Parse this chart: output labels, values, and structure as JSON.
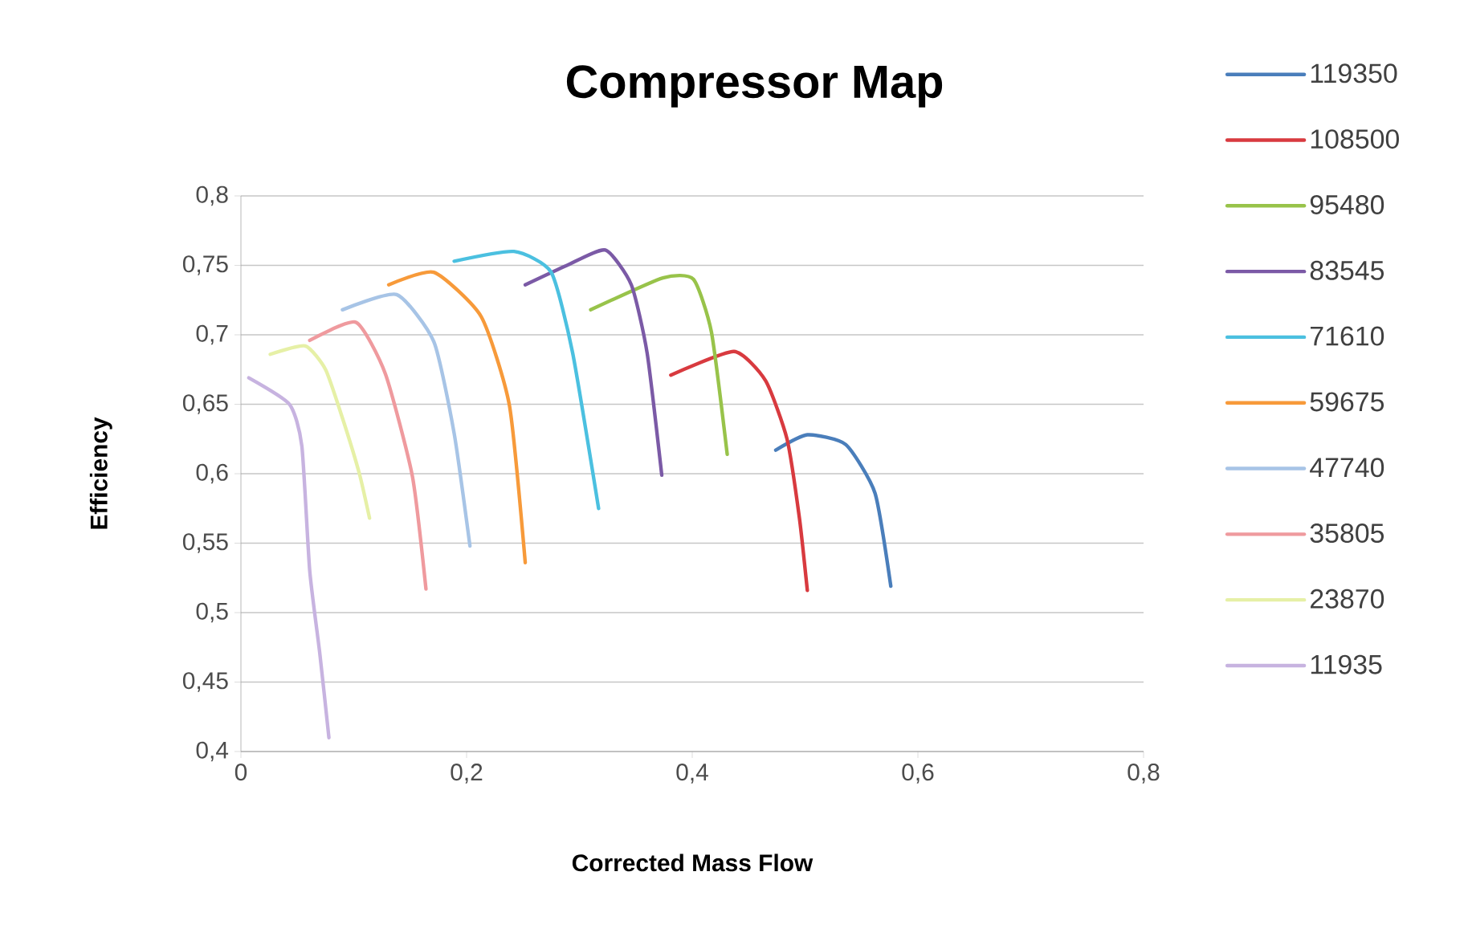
{
  "chart_data": {
    "type": "line",
    "title": "Compressor Map",
    "xlabel": "Corrected Mass Flow",
    "ylabel": "Efficiency",
    "xlim": [
      0,
      0.8
    ],
    "ylim": [
      0.4,
      0.8
    ],
    "xticks": [
      0,
      {
        "value": 0.2,
        "label": "0,2"
      },
      {
        "value": 0.4,
        "label": "0,4"
      },
      {
        "value": 0.6,
        "label": "0,6"
      },
      {
        "value": 0.8,
        "label": "0,8"
      }
    ],
    "yticks": [
      {
        "value": 0.4,
        "label": "0,4"
      },
      {
        "value": 0.45,
        "label": "0,45"
      },
      {
        "value": 0.5,
        "label": "0,5"
      },
      {
        "value": 0.55,
        "label": "0,55"
      },
      {
        "value": 0.6,
        "label": "0,6"
      },
      {
        "value": 0.65,
        "label": "0,65"
      },
      {
        "value": 0.7,
        "label": "0,7"
      },
      {
        "value": 0.75,
        "label": "0,75"
      },
      {
        "value": 0.8,
        "label": "0,8"
      }
    ],
    "grid": "y",
    "legend": "right",
    "marker": "none",
    "line_style": "solid",
    "series": [
      {
        "name": "119350",
        "color": "#4a7ebb",
        "x": [
          0.474,
          0.502,
          0.536,
          0.562,
          0.576
        ],
        "values": [
          0.617,
          0.628,
          0.621,
          0.586,
          0.519
        ]
      },
      {
        "name": "108500",
        "color": "#d83a3f",
        "x": [
          0.381,
          0.437,
          0.465,
          0.484,
          0.495,
          0.502
        ],
        "values": [
          0.671,
          0.688,
          0.667,
          0.625,
          0.568,
          0.516
        ]
      },
      {
        "name": "95480",
        "color": "#98c34a",
        "x": [
          0.31,
          0.374,
          0.401,
          0.417,
          0.431
        ],
        "values": [
          0.718,
          0.741,
          0.74,
          0.702,
          0.614
        ]
      },
      {
        "name": "83545",
        "color": "#7b5aa6",
        "x": [
          0.252,
          0.289,
          0.323,
          0.346,
          0.36,
          0.373
        ],
        "values": [
          0.736,
          0.75,
          0.761,
          0.736,
          0.687,
          0.599
        ]
      },
      {
        "name": "71610",
        "color": "#4bc0e0",
        "x": [
          0.189,
          0.242,
          0.275,
          0.294,
          0.317
        ],
        "values": [
          0.753,
          0.76,
          0.745,
          0.687,
          0.575
        ]
      },
      {
        "name": "59675",
        "color": "#f79a3a",
        "x": [
          0.131,
          0.171,
          0.213,
          0.238,
          0.252
        ],
        "values": [
          0.736,
          0.745,
          0.713,
          0.649,
          0.536
        ]
      },
      {
        "name": "47740",
        "color": "#a7c4e6",
        "x": [
          0.09,
          0.138,
          0.171,
          0.189,
          0.203
        ],
        "values": [
          0.718,
          0.729,
          0.695,
          0.629,
          0.548
        ]
      },
      {
        "name": "35805",
        "color": "#ef9a9e",
        "x": [
          0.061,
          0.102,
          0.128,
          0.152,
          0.164
        ],
        "values": [
          0.696,
          0.709,
          0.672,
          0.598,
          0.517
        ]
      },
      {
        "name": "23870",
        "color": "#e6f0a6",
        "x": [
          0.026,
          0.057,
          0.075,
          0.09,
          0.105,
          0.114
        ],
        "values": [
          0.686,
          0.692,
          0.675,
          0.64,
          0.6,
          0.568
        ]
      },
      {
        "name": "11935",
        "color": "#c7b3e0",
        "x": [
          0.007,
          0.043,
          0.054,
          0.061,
          0.07,
          0.078
        ],
        "values": [
          0.669,
          0.65,
          0.62,
          0.53,
          0.47,
          0.41
        ]
      }
    ]
  }
}
